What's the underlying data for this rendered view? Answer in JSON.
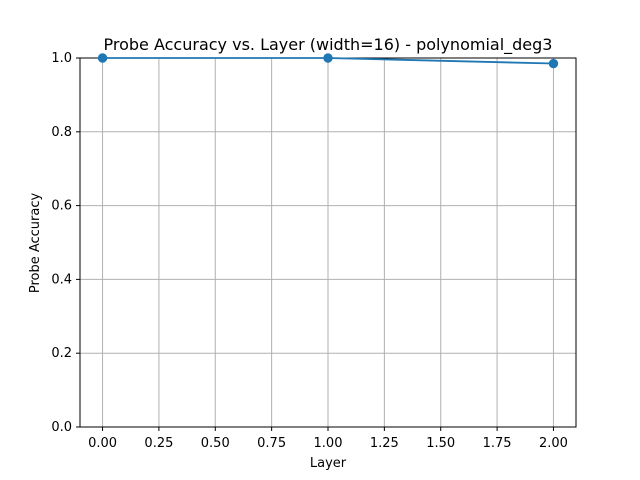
{
  "chart_data": {
    "type": "line",
    "title": "Probe Accuracy vs. Layer (width=16) - polynomial_deg3",
    "xlabel": "Layer",
    "ylabel": "Probe Accuracy",
    "x": [
      0,
      1,
      2
    ],
    "series": [
      {
        "values": [
          1.0,
          1.0,
          0.985
        ],
        "color": "#1f77b4",
        "marker": "circle"
      }
    ],
    "xlim": [
      -0.1,
      2.1
    ],
    "ylim": [
      0.0,
      1.0
    ],
    "x_ticks": [
      "0.00",
      "0.25",
      "0.50",
      "0.75",
      "1.00",
      "1.25",
      "1.50",
      "1.75",
      "2.00"
    ],
    "y_ticks": [
      "0.0",
      "0.2",
      "0.4",
      "0.6",
      "0.8",
      "1.0"
    ],
    "grid": true,
    "colors": {
      "grid": "#b0b0b0",
      "axis": "#000000",
      "background": "#ffffff"
    }
  }
}
